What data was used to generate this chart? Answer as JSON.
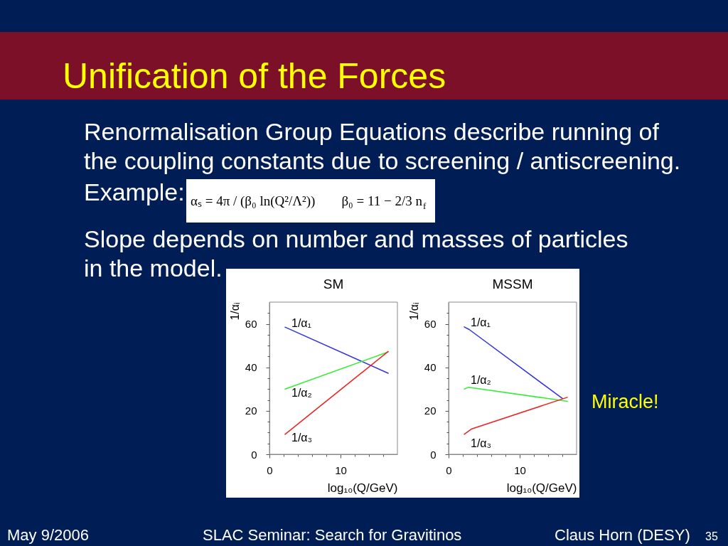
{
  "chart_data": [
    {
      "type": "other",
      "title": "Unification of the Forces",
      "annotations": [
        "Renormalisation Group Equations describe running of",
        "the coupling constants due to screening / antiscreening.",
        "Example:",
        "αₛ = 4π / (β₀ ln(Q²/Λ²))",
        "β₀ = 11 − 2/3 n$_{f}$",
        "Slope depends on number and masses of particles",
        "in the model."
      ]
    },
    {
      "type": "line",
      "title": "SM",
      "xlabel": "log₁₀(Q/GeV)",
      "ylabel": "1/αᵢ",
      "xlim": [
        0,
        18
      ],
      "ylim": [
        0,
        70
      ],
      "xticks": [
        {
          "value": 0,
          "label": "0"
        },
        {
          "value": 2,
          "label": null
        },
        {
          "value": 4,
          "label": null
        },
        {
          "value": 6,
          "label": null
        },
        {
          "value": 8,
          "label": null
        },
        10,
        {
          "value": 12,
          "label": null
        },
        {
          "value": 14,
          "label": null
        },
        {
          "value": 16,
          "label": null
        }
      ],
      "yticks": [
        {
          "value": 0,
          "label": "0"
        },
        {
          "value": 5,
          "label": null
        },
        {
          "value": 10,
          "label": null
        },
        {
          "value": 15,
          "label": null
        },
        20,
        {
          "value": 25,
          "label": null
        },
        {
          "value": 30,
          "label": null
        },
        {
          "value": 35,
          "label": null
        },
        40,
        {
          "value": 45,
          "label": null
        },
        {
          "value": 50,
          "label": null
        },
        {
          "value": 55,
          "label": null
        },
        60,
        {
          "value": 65,
          "label": null
        }
      ],
      "series": [
        {
          "name": "1/α₁",
          "color": "#3333dd",
          "x": [
            2.2,
            16.7
          ],
          "values": [
            58.5,
            37.3
          ]
        },
        {
          "name": "1/α₂",
          "color": "#33ee33",
          "x": [
            2.2,
            16.7
          ],
          "values": [
            30.0,
            47.1
          ]
        },
        {
          "name": "1/α₃",
          "color": "#ee2222",
          "x": [
            2.2,
            16.7
          ],
          "values": [
            9.2,
            47.3
          ]
        }
      ]
    },
    {
      "type": "line",
      "title": "MSSM",
      "xlabel": "log₁₀(Q/GeV)",
      "ylabel": "1/αᵢ",
      "xlim": [
        0,
        18
      ],
      "ylim": [
        0,
        70
      ],
      "xticks": [
        {
          "value": 0,
          "label": "0"
        },
        {
          "value": 2,
          "label": null
        },
        {
          "value": 4,
          "label": null
        },
        {
          "value": 6,
          "label": null
        },
        {
          "value": 8,
          "label": null
        },
        10,
        {
          "value": 12,
          "label": null
        },
        {
          "value": 14,
          "label": null
        },
        {
          "value": 16,
          "label": null
        }
      ],
      "yticks": [
        {
          "value": 0,
          "label": "0"
        },
        {
          "value": 5,
          "label": null
        },
        {
          "value": 10,
          "label": null
        },
        {
          "value": 15,
          "label": null
        },
        20,
        {
          "value": 25,
          "label": null
        },
        {
          "value": 30,
          "label": null
        },
        {
          "value": 35,
          "label": null
        },
        40,
        {
          "value": 45,
          "label": null
        },
        {
          "value": 50,
          "label": null
        },
        {
          "value": 55,
          "label": null
        },
        60,
        {
          "value": 65,
          "label": null
        }
      ],
      "series": [
        {
          "name": "1/α₁",
          "color": "#3333dd",
          "x": [
            2.2,
            2.9,
            16.0
          ],
          "values": [
            58.6,
            57.4,
            25.7
          ]
        },
        {
          "name": "1/α₂",
          "color": "#33ee33",
          "x": [
            2.2,
            2.8,
            16.7
          ],
          "values": [
            30.0,
            30.8,
            24.4
          ]
        },
        {
          "name": "1/α₃",
          "color": "#ee2222",
          "x": [
            2.2,
            3.2,
            16.7
          ],
          "values": [
            9.2,
            11.6,
            26.2
          ]
        }
      ],
      "annotations": [
        "Miracle!"
      ]
    },
    {
      "type": "other",
      "annotations": [
        "May 9/2006",
        "SLAC Seminar: Search for Gravitinos",
        "Claus Horn (DESY)",
        "35"
      ]
    }
  ]
}
